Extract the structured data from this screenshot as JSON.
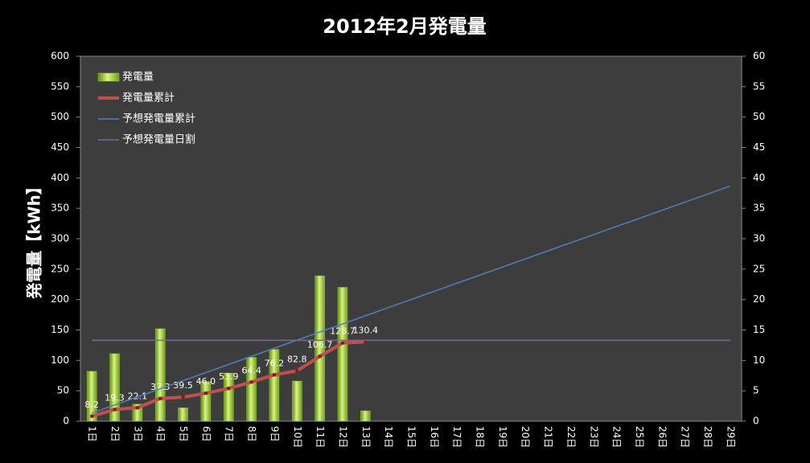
{
  "chart_data": {
    "type": "bar",
    "title": "2012年2月発電量",
    "y_label": "発電量【kWh】",
    "categories": [
      "1日",
      "2日",
      "3日",
      "4日",
      "5日",
      "6日",
      "7日",
      "8日",
      "9日",
      "10日",
      "11日",
      "12日",
      "13日",
      "14日",
      "15日",
      "16日",
      "17日",
      "18日",
      "19日",
      "20日",
      "21日",
      "22日",
      "23日",
      "24日",
      "25日",
      "26日",
      "27日",
      "28日",
      "29日"
    ],
    "ylim": [
      0,
      600
    ],
    "yticks": [
      0,
      50,
      100,
      150,
      200,
      250,
      300,
      350,
      400,
      450,
      500,
      550,
      600
    ],
    "y2lim": [
      0,
      60
    ],
    "y2ticks": [
      0,
      5,
      10,
      15,
      20,
      25,
      30,
      35,
      40,
      45,
      50,
      55,
      60
    ],
    "grid": false,
    "legend": "upper left",
    "series": [
      {
        "name": "発電量",
        "type": "bar",
        "axis": "y2",
        "color": "#9bd12c",
        "values": [
          8.2,
          11.1,
          2.8,
          15.2,
          2.2,
          6.5,
          7.9,
          10.5,
          11.8,
          6.6,
          23.9,
          22.0,
          1.7,
          null,
          null,
          null,
          null,
          null,
          null,
          null,
          null,
          null,
          null,
          null,
          null,
          null,
          null,
          null,
          null
        ]
      },
      {
        "name": "発電量累計",
        "type": "line",
        "color": "#c0504d",
        "width": 4,
        "markers": true,
        "values": [
          8.2,
          19.3,
          22.1,
          37.3,
          39.5,
          46.0,
          53.9,
          64.4,
          76.2,
          82.8,
          106.7,
          128.7,
          130.4,
          null,
          null,
          null,
          null,
          null,
          null,
          null,
          null,
          null,
          null,
          null,
          null,
          null,
          null,
          null,
          null
        ],
        "value_labels": [
          "8.2",
          "19.3",
          "22.1",
          "37.3",
          "39.5",
          "46.0",
          "53.9",
          "64.4",
          "76.2",
          "82.8",
          "106.7",
          "128.7",
          "130.4",
          null,
          null,
          null,
          null,
          null,
          null,
          null,
          null,
          null,
          null,
          null,
          null,
          null,
          null,
          null,
          null
        ]
      },
      {
        "name": "予想発電量累計",
        "type": "line",
        "color": "#4f81bd",
        "width": 1.5,
        "values": [
          13.3,
          26.7,
          40.0,
          53.3,
          66.7,
          80.0,
          93.3,
          106.7,
          120.0,
          133.3,
          146.7,
          160.0,
          173.3,
          186.7,
          200.0,
          213.3,
          226.7,
          240.0,
          253.3,
          266.7,
          280.0,
          293.3,
          306.7,
          320.0,
          333.3,
          346.7,
          360.0,
          373.3,
          386.7
        ]
      },
      {
        "name": "予想発電量日割",
        "type": "line",
        "axis": "y2",
        "color": "#8064a2",
        "width": 1.5,
        "values": [
          13.3,
          13.3,
          13.3,
          13.3,
          13.3,
          13.3,
          13.3,
          13.3,
          13.3,
          13.3,
          13.3,
          13.3,
          13.3,
          13.3,
          13.3,
          13.3,
          13.3,
          13.3,
          13.3,
          13.3,
          13.3,
          13.3,
          13.3,
          13.3,
          13.3,
          13.3,
          13.3,
          13.3,
          13.3
        ]
      }
    ]
  }
}
